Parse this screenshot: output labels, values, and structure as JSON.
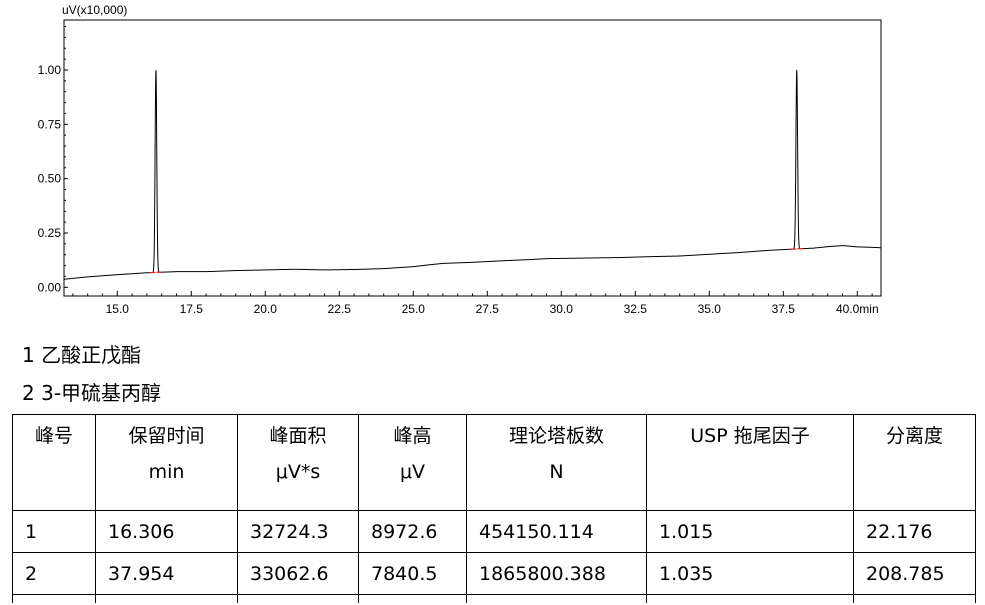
{
  "chart_data": {
    "type": "line",
    "y_unit_label": "uV(x10,000)",
    "x_unit": "min",
    "xlim": [
      13.2,
      40.8
    ],
    "ylim": [
      -0.04,
      1.23
    ],
    "x_ticks": [
      15.0,
      17.5,
      20.0,
      22.5,
      25.0,
      27.5,
      30.0,
      32.5,
      35.0,
      37.5,
      40.0
    ],
    "x_tick_labels": [
      "15.0",
      "17.5",
      "20.0",
      "22.5",
      "25.0",
      "27.5",
      "30.0",
      "32.5",
      "35.0",
      "37.5",
      "40.0"
    ],
    "y_ticks": [
      0.0,
      0.25,
      0.5,
      0.75,
      1.0
    ],
    "y_tick_labels": [
      "0.00",
      "0.25",
      "0.50",
      "0.75",
      "1.00"
    ],
    "baseline": [
      [
        13.2,
        0.037
      ],
      [
        14.0,
        0.048
      ],
      [
        15.0,
        0.058
      ],
      [
        16.0,
        0.067
      ],
      [
        17.0,
        0.072
      ],
      [
        18.0,
        0.072
      ],
      [
        19.0,
        0.077
      ],
      [
        20.0,
        0.08
      ],
      [
        21.0,
        0.083
      ],
      [
        22.0,
        0.08
      ],
      [
        23.0,
        0.082
      ],
      [
        24.0,
        0.086
      ],
      [
        25.0,
        0.095
      ],
      [
        25.5,
        0.103
      ],
      [
        26.0,
        0.11
      ],
      [
        27.0,
        0.115
      ],
      [
        28.0,
        0.122
      ],
      [
        29.0,
        0.128
      ],
      [
        29.5,
        0.132
      ],
      [
        30.0,
        0.133
      ],
      [
        31.0,
        0.135
      ],
      [
        32.0,
        0.137
      ],
      [
        33.0,
        0.141
      ],
      [
        34.0,
        0.144
      ],
      [
        35.0,
        0.152
      ],
      [
        36.0,
        0.16
      ],
      [
        37.0,
        0.17
      ],
      [
        38.0,
        0.177
      ],
      [
        38.5,
        0.18
      ],
      [
        39.0,
        0.187
      ],
      [
        39.5,
        0.192
      ],
      [
        40.0,
        0.186
      ],
      [
        40.5,
        0.184
      ],
      [
        40.8,
        0.182
      ]
    ],
    "peaks": [
      {
        "rt": 16.306,
        "height": 1.0
      },
      {
        "rt": 37.954,
        "height": 1.0
      }
    ]
  },
  "legend": [
    {
      "num": "1",
      "name": "乙酸正戊酯"
    },
    {
      "num": "2",
      "name": "3-甲硫基丙醇"
    }
  ],
  "table": {
    "headers": [
      {
        "line1": "峰号",
        "line2": ""
      },
      {
        "line1": "保留时间",
        "line2": "min"
      },
      {
        "line1": "峰面积",
        "line2": "μV*s"
      },
      {
        "line1": "峰高",
        "line2": "μV"
      },
      {
        "line1": "理论塔板数",
        "line2": "N"
      },
      {
        "line1": "USP 拖尾因子",
        "line2": ""
      },
      {
        "line1": "分离度",
        "line2": ""
      }
    ],
    "rows": [
      [
        "1",
        "16.306",
        "32724.3",
        "8972.6",
        "454150.114",
        "1.015",
        "22.176"
      ],
      [
        "2",
        "37.954",
        "33062.6",
        "7840.5",
        "1865800.388",
        "1.035",
        "208.785"
      ]
    ]
  }
}
